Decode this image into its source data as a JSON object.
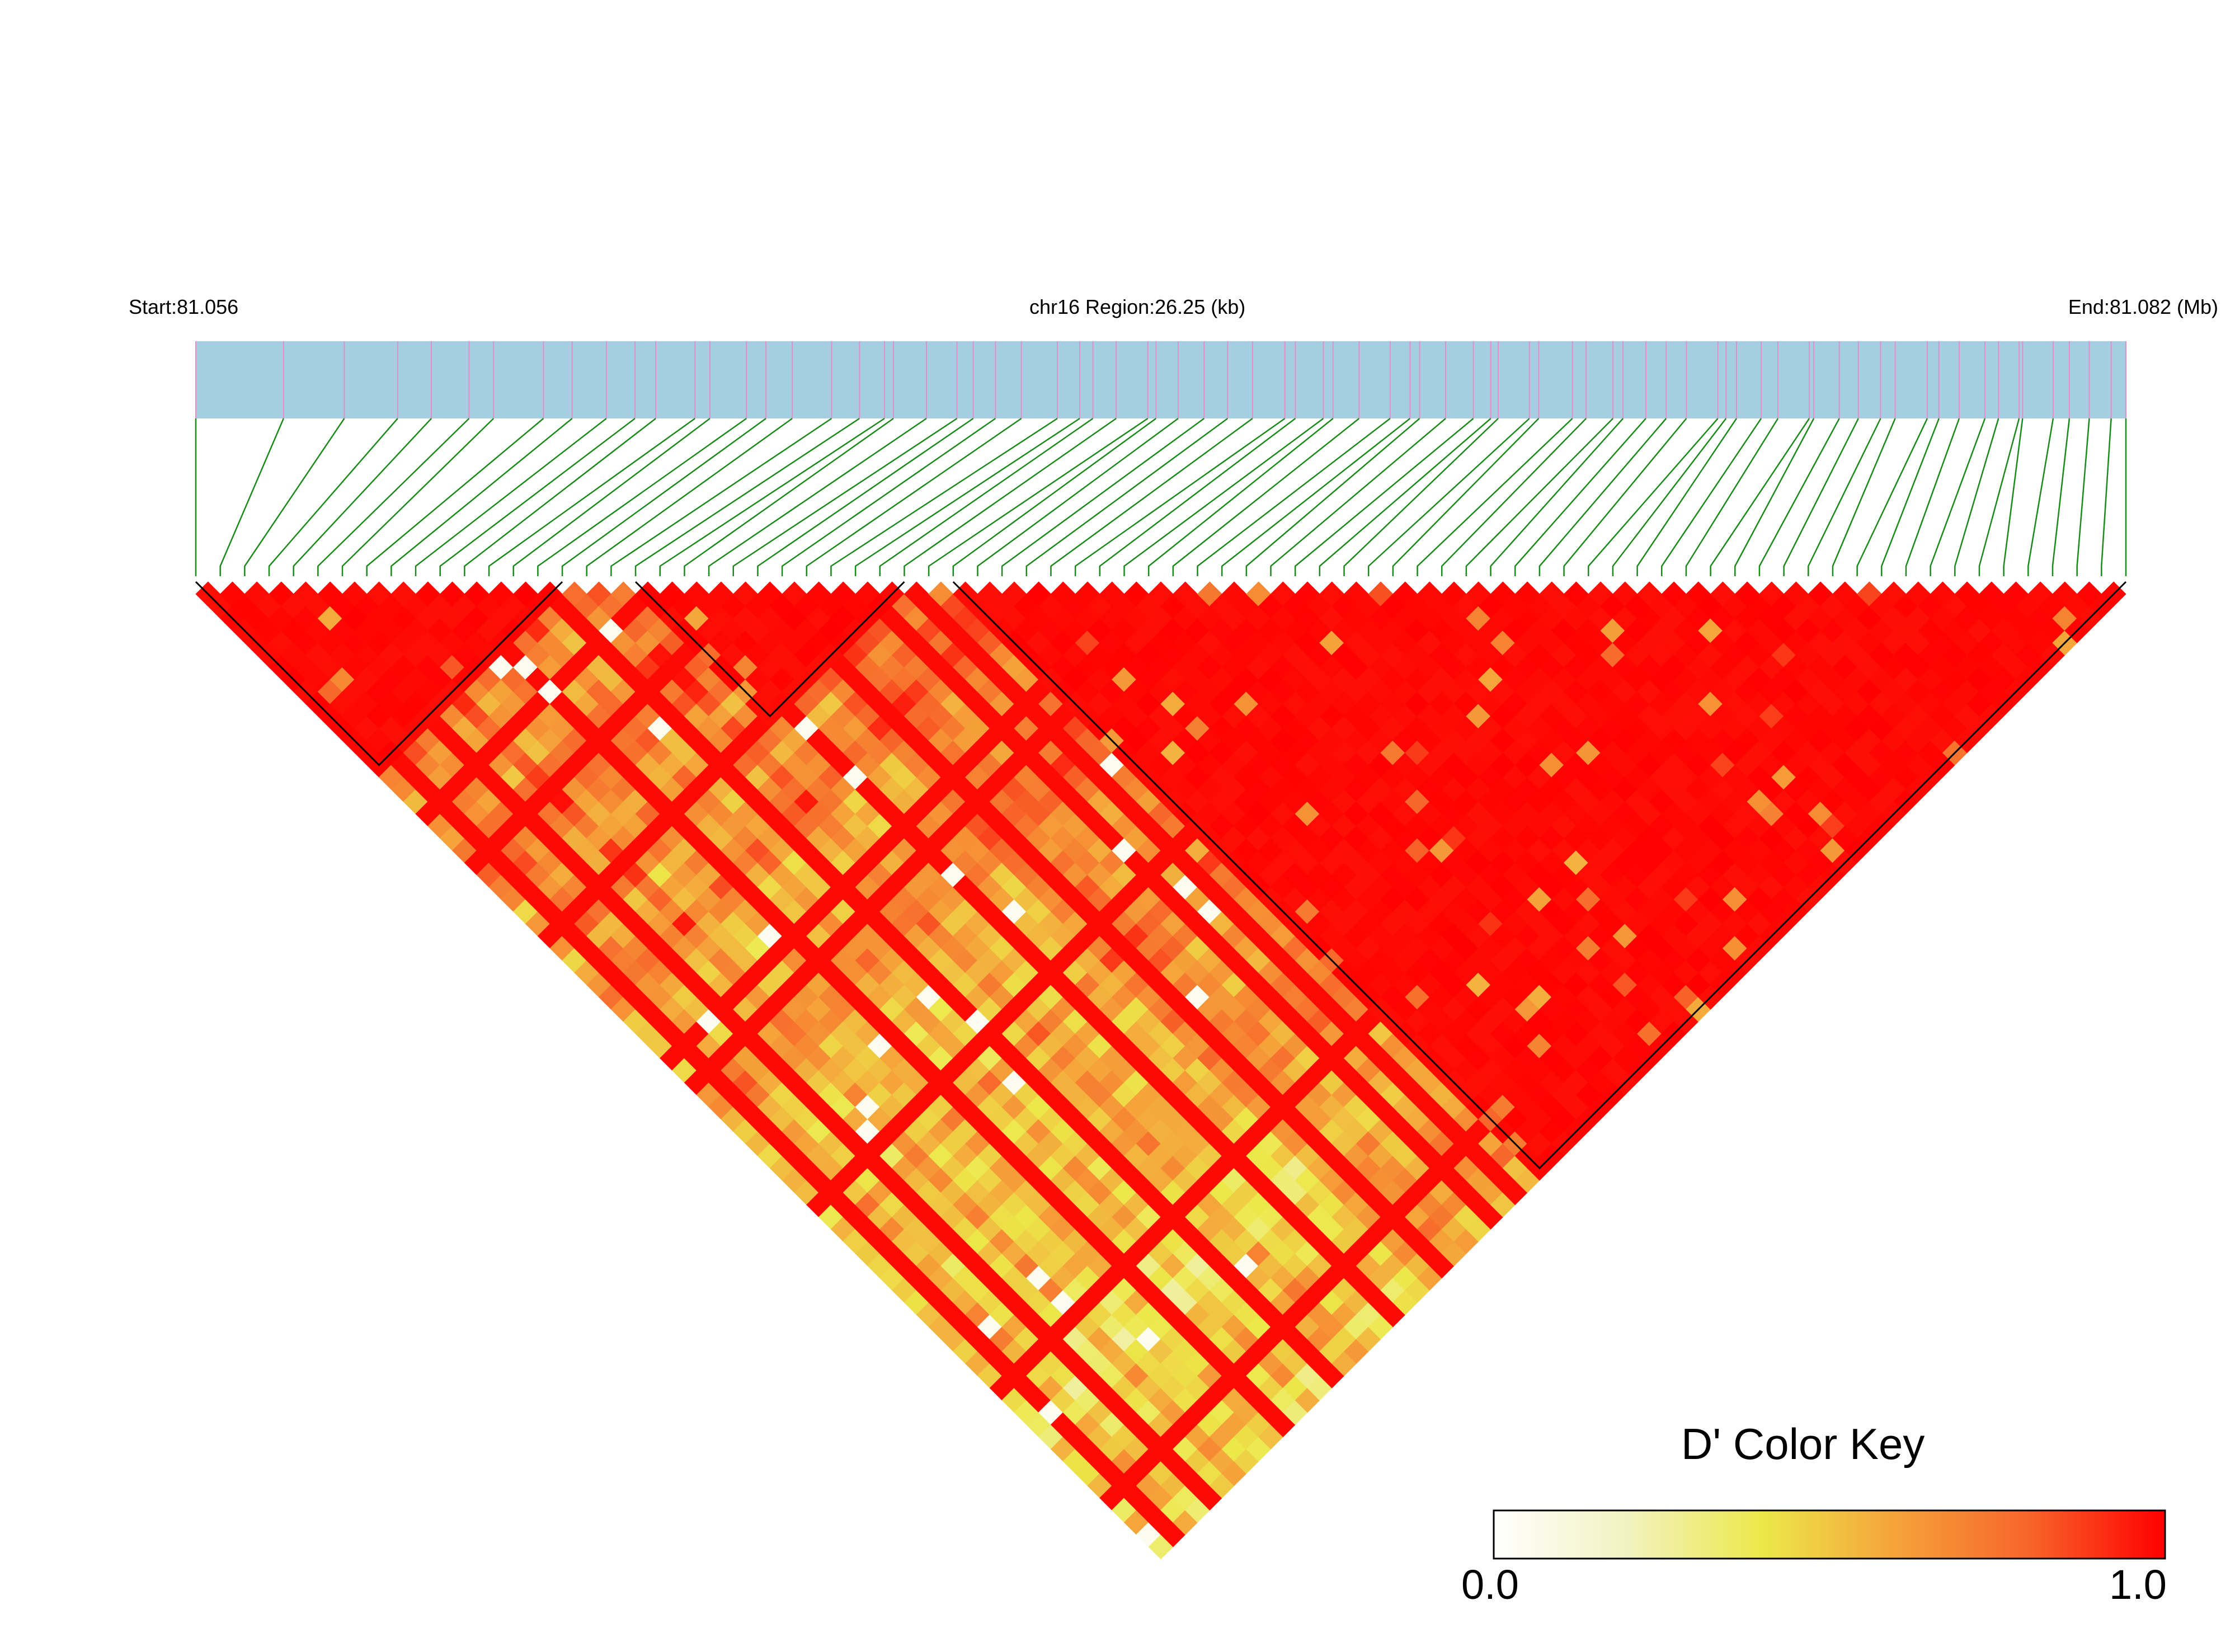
{
  "header": {
    "start_label": "Start:81.056",
    "region_label": "chr16 Region:26.25 (kb)",
    "end_label": "End:81.082 (Mb)"
  },
  "color_key": {
    "title": "D' Color Key",
    "min_label": "0.0",
    "max_label": "1.0",
    "stops": [
      "#ffffff",
      "#f2f2c0",
      "#ece84a",
      "#f5a23a",
      "#f7642a",
      "#ff0000"
    ]
  },
  "colors": {
    "snp_track_bg": "#a6cee3",
    "snp_marker": "#e38fc7",
    "connector": "#1a8a1a",
    "high_ld": "#ff0000",
    "block_outline": "#000000"
  },
  "chart_data": {
    "type": "heatmap",
    "title": "",
    "xlabel": "",
    "ylabel": "",
    "region": {
      "chromosome": "chr16",
      "start_mb": 81.056,
      "end_mb": 81.082,
      "length_kb": 26.25
    },
    "value_range": [
      0.0,
      1.0
    ],
    "snp_count": 80,
    "ld_blocks": [
      {
        "first_snp": 1,
        "last_snp": 16
      },
      {
        "first_snp": 19,
        "last_snp": 30
      },
      {
        "first_snp": 32,
        "last_snp": 80
      }
    ]
  }
}
